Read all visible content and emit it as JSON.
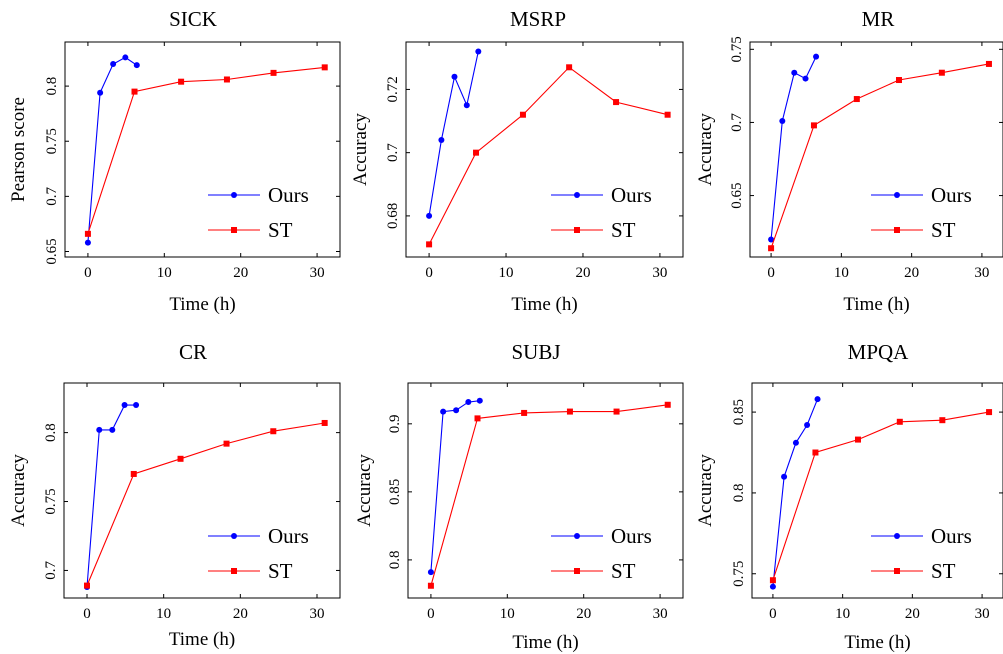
{
  "chart_data": [
    {
      "type": "line",
      "title": "SICK",
      "xlabel": "Time (h)",
      "ylabel": "Pearson score",
      "xlim": [
        -3,
        33
      ],
      "ylim": [
        0.645,
        0.84
      ],
      "xticks": [
        0,
        10,
        20,
        30
      ],
      "yticks": [
        0.65,
        0.7,
        0.75,
        0.8
      ],
      "ytick_labels": [
        "0.65",
        "0.7",
        "0.75",
        "0.8"
      ],
      "series": [
        {
          "name": "Ours",
          "color": "#0000ff",
          "marker": "circle",
          "x": [
            0,
            1.6,
            3.3,
            4.9,
            6.4
          ],
          "y": [
            0.658,
            0.794,
            0.82,
            0.826,
            0.819
          ]
        },
        {
          "name": "ST",
          "color": "#ff0000",
          "marker": "square",
          "x": [
            0,
            6.1,
            12.2,
            18.2,
            24.3,
            31
          ],
          "y": [
            0.666,
            0.795,
            0.804,
            0.806,
            0.812,
            0.817
          ]
        }
      ]
    },
    {
      "type": "line",
      "title": "MSRP",
      "xlabel": "Time (h)",
      "ylabel": "Accuracy",
      "xlim": [
        -3,
        33
      ],
      "ylim": [
        0.667,
        0.735
      ],
      "xticks": [
        0,
        10,
        20,
        30
      ],
      "yticks": [
        0.68,
        0.7,
        0.72
      ],
      "ytick_labels": [
        "0.68",
        "0.7",
        "0.72"
      ],
      "series": [
        {
          "name": "Ours",
          "color": "#0000ff",
          "marker": "circle",
          "x": [
            0,
            1.6,
            3.3,
            4.9,
            6.4
          ],
          "y": [
            0.68,
            0.704,
            0.724,
            0.715,
            0.732
          ]
        },
        {
          "name": "ST",
          "color": "#ff0000",
          "marker": "square",
          "x": [
            0,
            6.1,
            12.2,
            18.2,
            24.3,
            31
          ],
          "y": [
            0.671,
            0.7,
            0.712,
            0.727,
            0.716,
            0.712
          ]
        }
      ]
    },
    {
      "type": "line",
      "title": "MR",
      "xlabel": "Time (h)",
      "ylabel": "Accuracy",
      "xlim": [
        -3,
        33
      ],
      "ylim": [
        0.608,
        0.755
      ],
      "xticks": [
        0,
        10,
        20,
        30
      ],
      "yticks": [
        0.65,
        0.7,
        0.75
      ],
      "ytick_labels": [
        "0.65",
        "0.7",
        "0.75"
      ],
      "series": [
        {
          "name": "Ours",
          "color": "#0000ff",
          "marker": "circle",
          "x": [
            0,
            1.6,
            3.3,
            4.9,
            6.4
          ],
          "y": [
            0.62,
            0.701,
            0.734,
            0.73,
            0.745
          ]
        },
        {
          "name": "ST",
          "color": "#ff0000",
          "marker": "square",
          "x": [
            0,
            6.1,
            12.2,
            18.2,
            24.3,
            31
          ],
          "y": [
            0.614,
            0.698,
            0.716,
            0.729,
            0.734,
            0.74
          ]
        }
      ]
    },
    {
      "type": "line",
      "title": "CR",
      "xlabel": "Time (h)",
      "ylabel": "Accuracy",
      "xlim": [
        -3,
        33
      ],
      "ylim": [
        0.68,
        0.836
      ],
      "xticks": [
        0,
        10,
        20,
        30
      ],
      "yticks": [
        0.7,
        0.75,
        0.8
      ],
      "ytick_labels": [
        "0.7",
        "0.75",
        "0.8"
      ],
      "series": [
        {
          "name": "Ours",
          "color": "#0000ff",
          "marker": "circle",
          "x": [
            0,
            1.6,
            3.3,
            4.9,
            6.4
          ],
          "y": [
            0.688,
            0.802,
            0.802,
            0.82,
            0.82
          ]
        },
        {
          "name": "ST",
          "color": "#ff0000",
          "marker": "square",
          "x": [
            0,
            6.1,
            12.2,
            18.2,
            24.3,
            31
          ],
          "y": [
            0.689,
            0.77,
            0.781,
            0.792,
            0.801,
            0.807
          ]
        }
      ]
    },
    {
      "type": "line",
      "title": "SUBJ",
      "xlabel": "Time (h)",
      "ylabel": "Accuracy",
      "xlim": [
        -3,
        33
      ],
      "ylim": [
        0.772,
        0.93
      ],
      "xticks": [
        0,
        10,
        20,
        30
      ],
      "yticks": [
        0.8,
        0.85,
        0.9
      ],
      "ytick_labels": [
        "0.8",
        "0.85",
        "0.9"
      ],
      "series": [
        {
          "name": "Ours",
          "color": "#0000ff",
          "marker": "circle",
          "x": [
            0,
            1.6,
            3.3,
            4.9,
            6.4
          ],
          "y": [
            0.791,
            0.909,
            0.91,
            0.916,
            0.917
          ]
        },
        {
          "name": "ST",
          "color": "#ff0000",
          "marker": "square",
          "x": [
            0,
            6.1,
            12.2,
            18.2,
            24.3,
            31
          ],
          "y": [
            0.781,
            0.904,
            0.908,
            0.909,
            0.909,
            0.914
          ]
        }
      ]
    },
    {
      "type": "line",
      "title": "MPQA",
      "xlabel": "Time (h)",
      "ylabel": "Accuracy",
      "xlim": [
        -3,
        33
      ],
      "ylim": [
        0.735,
        0.868
      ],
      "xticks": [
        0,
        10,
        20,
        30
      ],
      "yticks": [
        0.75,
        0.8,
        0.85
      ],
      "ytick_labels": [
        "0.75",
        "0.8",
        "0.85"
      ],
      "series": [
        {
          "name": "Ours",
          "color": "#0000ff",
          "marker": "circle",
          "x": [
            0,
            1.6,
            3.3,
            4.9,
            6.4
          ],
          "y": [
            0.742,
            0.81,
            0.831,
            0.842,
            0.858
          ]
        },
        {
          "name": "ST",
          "color": "#ff0000",
          "marker": "square",
          "x": [
            0,
            6.1,
            12.2,
            18.2,
            24.3,
            31
          ],
          "y": [
            0.746,
            0.825,
            0.833,
            0.844,
            0.845,
            0.85
          ]
        }
      ]
    }
  ]
}
